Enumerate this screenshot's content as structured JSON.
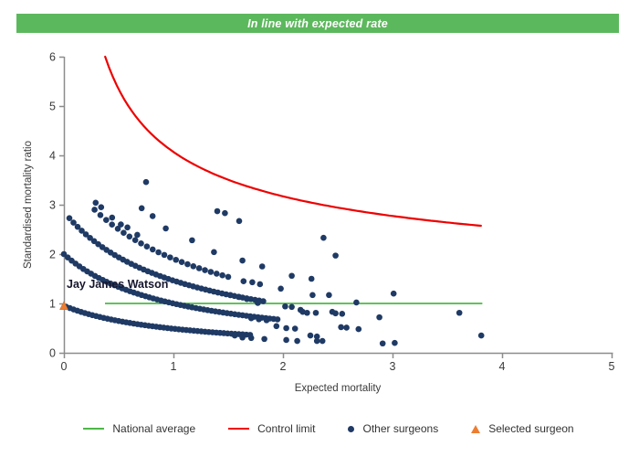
{
  "header": {
    "title": "In line with expected rate",
    "background": "#5CB85C",
    "text_color": "#FFFFFF"
  },
  "chart_data": {
    "type": "scatter",
    "title": "",
    "xlabel": "Expected mortality",
    "ylabel": "Standardised mortality ratio",
    "xlim": [
      0,
      5
    ],
    "ylim": [
      0,
      6
    ],
    "x_ticks": [
      0,
      1,
      2,
      3,
      4,
      5
    ],
    "y_ticks": [
      0,
      1,
      2,
      3,
      4,
      5,
      6
    ],
    "grid": false,
    "legend_position": "bottom",
    "colors": {
      "other_surgeons": "#1F3A64",
      "selected_surgeon": "#ED7D31",
      "national_average": "#4DB848",
      "control_limit": "#EE0000",
      "axis": "#8C8C8C",
      "tick_text": "#3A3A3A"
    },
    "national_average": {
      "SMR": 1.0,
      "E_start": 0.375,
      "E_end": 3.82
    },
    "control_limit": {
      "formula": "SMR = 1 + 3.07/sqrt(E)",
      "intercept": 1.0,
      "coefficient": 3.07,
      "E_start": 0.377,
      "E_end": 3.82
    },
    "surgeon_bands": [
      {
        "label": "band-1-death",
        "formula": "SMR = 1/(E+1.05)",
        "n": 1,
        "c": 1.05,
        "E_start": 0.02,
        "E_end": 1.7,
        "count": 50
      },
      {
        "label": "band-2-deaths",
        "formula": "SMR = 2/(E+1.00)",
        "n": 2,
        "c": 1.0,
        "E_start": 0.0,
        "E_end": 1.95,
        "count": 56
      },
      {
        "label": "band-3-deaths",
        "formula": "SMR = 3/(E+1.05)",
        "n": 3,
        "c": 1.05,
        "E_start": 0.05,
        "E_end": 1.82,
        "count": 48
      },
      {
        "label": "band-4-deaths",
        "formula": "SMR = 4/(E+1.10)",
        "n": 4,
        "c": 1.1,
        "E_start": 0.28,
        "E_end": 1.5,
        "count": 24
      }
    ],
    "scatter_points": [
      [
        0.75,
        3.46
      ],
      [
        0.29,
        3.04
      ],
      [
        0.34,
        2.95
      ],
      [
        0.71,
        2.93
      ],
      [
        1.4,
        2.87
      ],
      [
        1.47,
        2.83
      ],
      [
        0.81,
        2.77
      ],
      [
        0.44,
        2.74
      ],
      [
        1.6,
        2.67
      ],
      [
        0.52,
        2.6
      ],
      [
        0.58,
        2.54
      ],
      [
        0.93,
        2.52
      ],
      [
        0.67,
        2.39
      ],
      [
        2.37,
        2.33
      ],
      [
        1.17,
        2.28
      ],
      [
        1.37,
        2.04
      ],
      [
        2.48,
        1.97
      ],
      [
        1.63,
        1.87
      ],
      [
        1.81,
        1.75
      ],
      [
        2.08,
        1.56
      ],
      [
        2.26,
        1.5
      ],
      [
        1.64,
        1.45
      ],
      [
        1.72,
        1.43
      ],
      [
        1.79,
        1.39
      ],
      [
        1.98,
        1.3
      ],
      [
        3.01,
        1.2
      ],
      [
        1.52,
        1.17
      ],
      [
        2.27,
        1.17
      ],
      [
        2.42,
        1.17
      ],
      [
        1.6,
        1.13
      ],
      [
        1.67,
        1.09
      ],
      [
        2.67,
        1.02
      ],
      [
        1.77,
        1.01
      ],
      [
        2.02,
        0.94
      ],
      [
        2.08,
        0.93
      ],
      [
        2.16,
        0.87
      ],
      [
        2.18,
        0.83
      ],
      [
        2.45,
        0.83
      ],
      [
        2.22,
        0.81
      ],
      [
        2.3,
        0.81
      ],
      [
        3.61,
        0.81
      ],
      [
        2.48,
        0.8
      ],
      [
        2.54,
        0.79
      ],
      [
        2.88,
        0.72
      ],
      [
        1.71,
        0.7
      ],
      [
        1.78,
        0.68
      ],
      [
        1.85,
        0.66
      ],
      [
        1.94,
        0.54
      ],
      [
        2.53,
        0.52
      ],
      [
        2.58,
        0.51
      ],
      [
        2.03,
        0.5
      ],
      [
        2.11,
        0.49
      ],
      [
        2.69,
        0.48
      ],
      [
        1.56,
        0.35
      ],
      [
        2.25,
        0.35
      ],
      [
        3.81,
        0.35
      ],
      [
        2.31,
        0.33
      ],
      [
        1.63,
        0.31
      ],
      [
        1.71,
        0.3
      ],
      [
        1.83,
        0.28
      ],
      [
        2.03,
        0.26
      ],
      [
        2.13,
        0.24
      ],
      [
        2.31,
        0.24
      ],
      [
        2.36,
        0.24
      ],
      [
        2.91,
        0.19
      ],
      [
        3.02,
        0.2
      ]
    ],
    "selected_surgeon": {
      "name": "Jay James Watson",
      "E": 0.0,
      "SMR": 0.95
    }
  },
  "legend": {
    "items": [
      {
        "label": "National average",
        "marker": "line",
        "color": "#4DB848"
      },
      {
        "label": "Control limit",
        "marker": "line",
        "color": "#EE0000"
      },
      {
        "label": "Other surgeons",
        "marker": "dot",
        "color": "#1F3A64"
      },
      {
        "label": "Selected surgeon",
        "marker": "triangle",
        "color": "#ED7D31"
      }
    ]
  }
}
